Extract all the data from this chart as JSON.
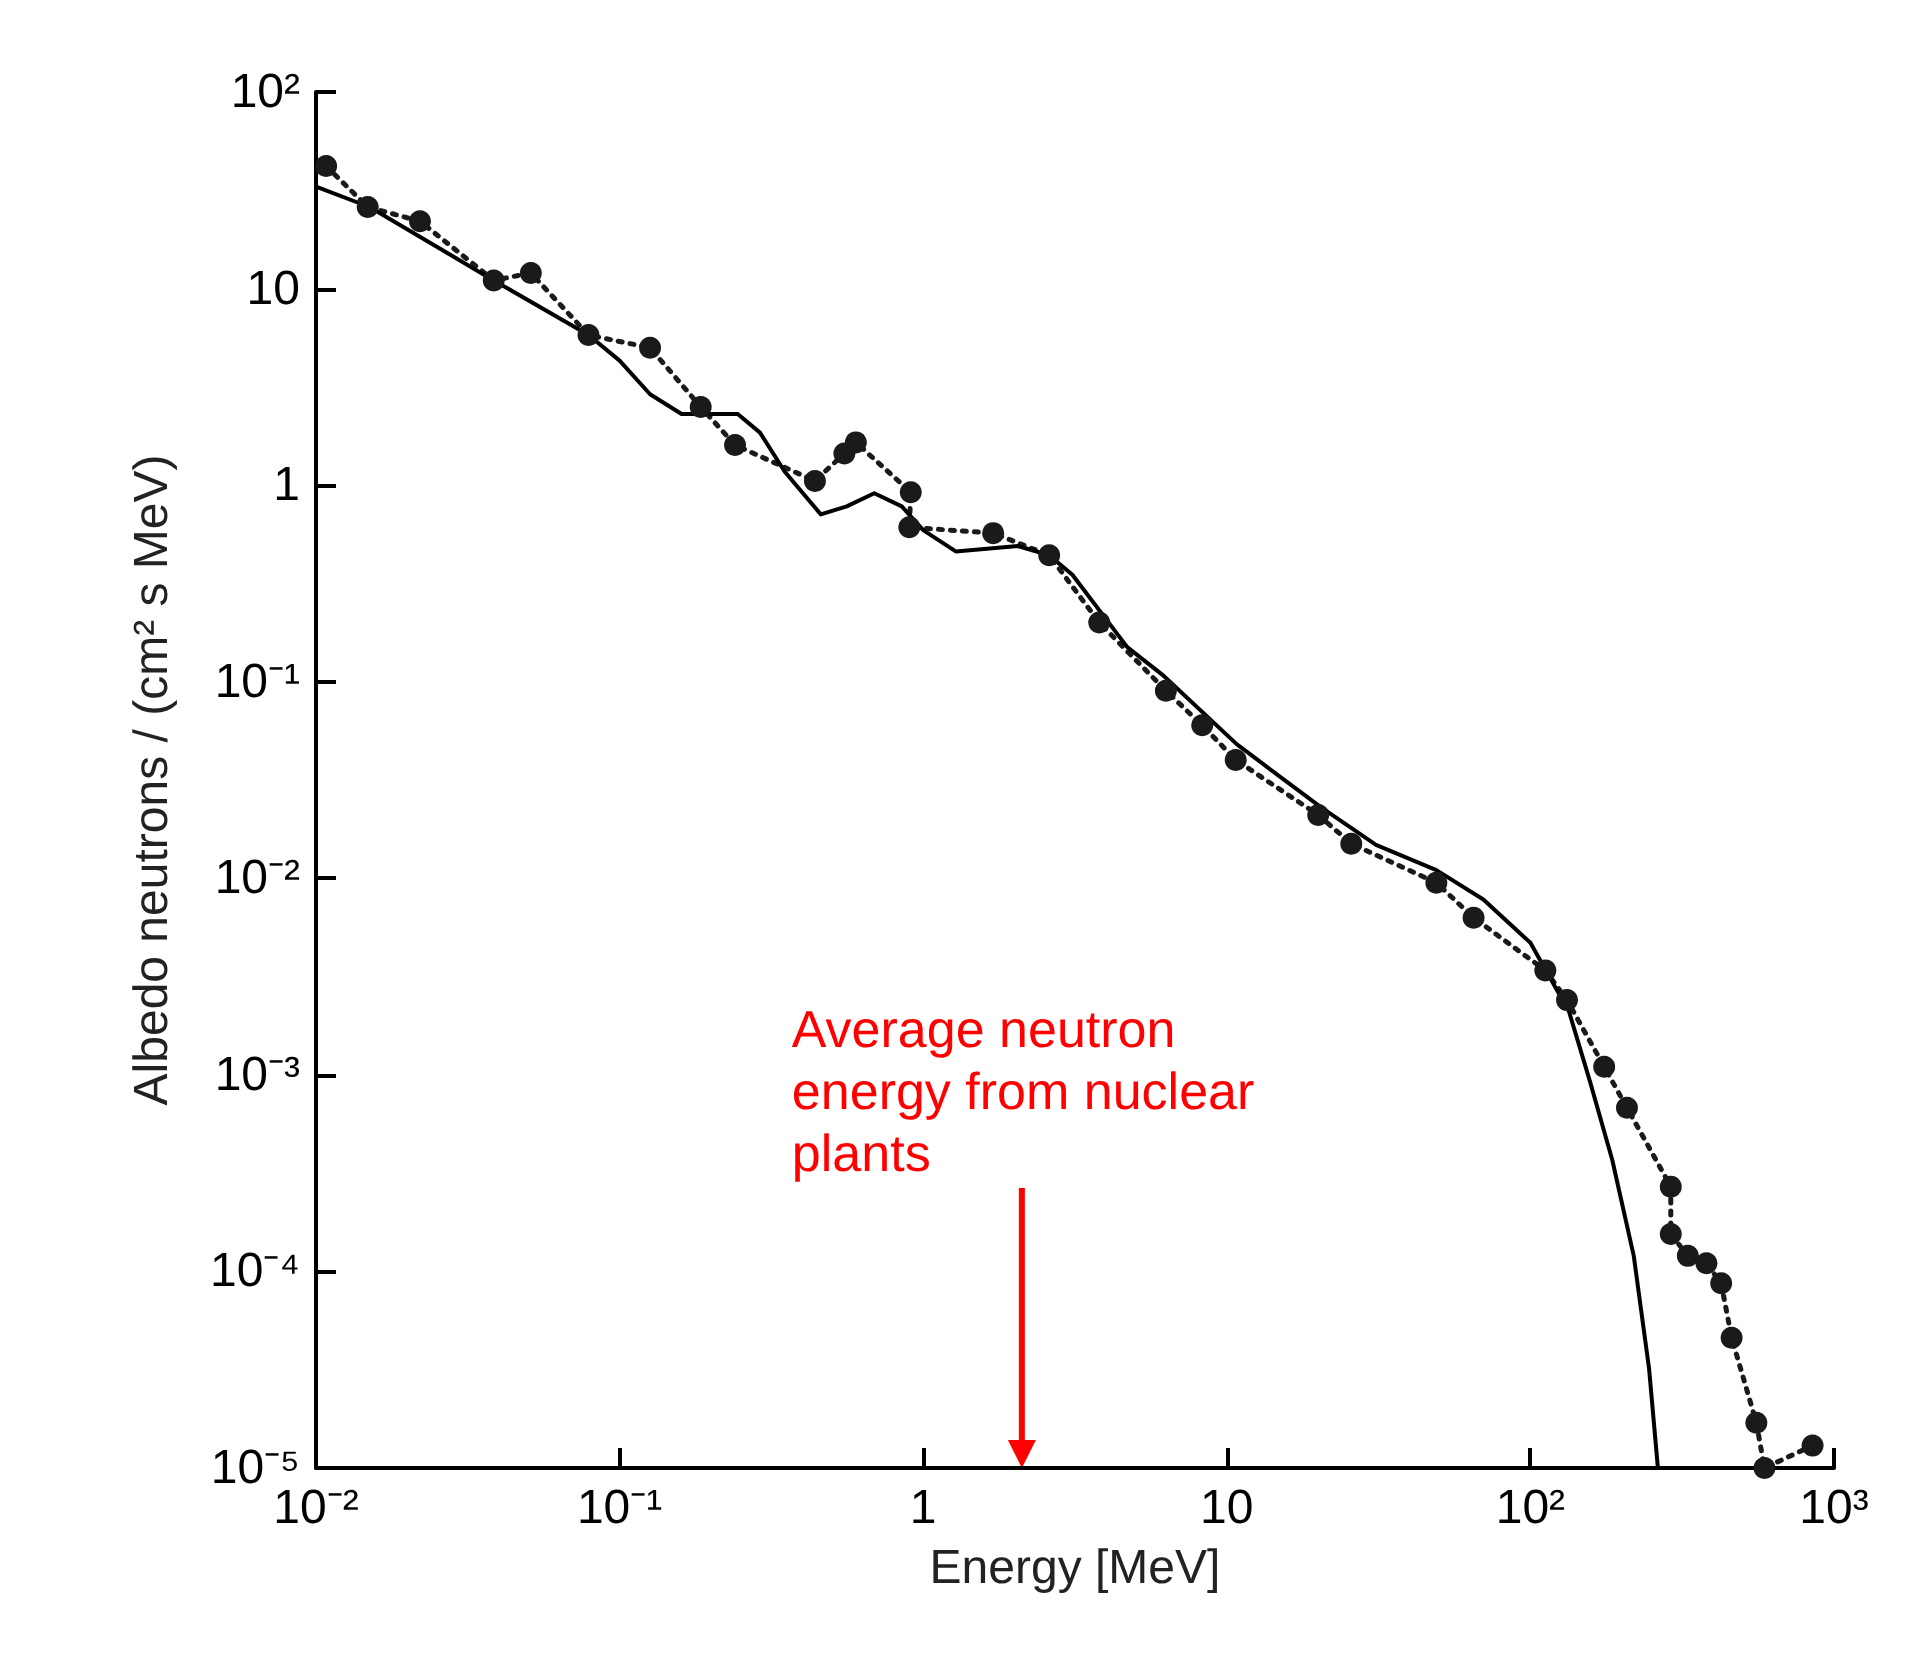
{
  "chart_data": {
    "type": "line",
    "xlabel": "Energy [MeV]",
    "ylabel": "Albedo neutrons / (cm² s MeV)",
    "log": "xy",
    "xlim": [
      0.01,
      1000
    ],
    "ylim": [
      1e-05,
      100
    ],
    "xticks": [
      {
        "value": 0.01,
        "label": "10⁻²"
      },
      {
        "value": 0.1,
        "label": "10⁻¹"
      },
      1,
      10,
      {
        "value": 100,
        "label": "10²"
      },
      {
        "value": 1000,
        "label": "10³"
      }
    ],
    "yticks": [
      {
        "value": 1e-05,
        "label": "10⁻⁵"
      },
      {
        "value": 0.0001,
        "label": "10⁻⁴"
      },
      {
        "value": 0.001,
        "label": "10⁻³"
      },
      {
        "value": 0.01,
        "label": "10⁻²"
      },
      {
        "value": 0.1,
        "label": "10⁻¹"
      },
      1,
      10,
      {
        "value": 100,
        "label": "10²"
      }
    ],
    "grid": false,
    "annotations": [
      "Average neutron energy from nuclear plants"
    ],
    "series": [
      {
        "color": "#1a1a1a",
        "marker": "circle",
        "line_style": "dotted",
        "x": [
          0.0108,
          0.0148,
          0.022,
          0.0385,
          0.051,
          0.079,
          0.126,
          0.185,
          0.24,
          0.44,
          0.55,
          0.6,
          0.91,
          0.9,
          1.7,
          2.6,
          3.8,
          6.3,
          8.3,
          10.7,
          20,
          25.7,
          49,
          65,
          112,
          132,
          175,
          208,
          290,
          290,
          330,
          380,
          425,
          460,
          555,
          590,
          850
        ],
        "values": [
          42,
          26,
          22,
          11,
          12,
          5.8,
          5,
          2.5,
          1.6,
          1.05,
          1.45,
          1.65,
          0.92,
          0.61,
          0.57,
          0.44,
          0.2,
          0.09,
          0.06,
          0.04,
          0.021,
          0.015,
          0.0095,
          0.0063,
          0.0034,
          0.0024,
          0.0011,
          0.00068,
          0.00027,
          0.000155,
          0.00012,
          0.00011,
          8.7e-05,
          4.6e-05,
          1.7e-05,
          1e-05,
          1.3e-05
        ]
      },
      {
        "color": "#000000",
        "marker": "none",
        "line_style": "solid",
        "x": [
          0.01,
          0.015,
          0.0385,
          0.079,
          0.1,
          0.126,
          0.16,
          0.245,
          0.29,
          0.35,
          0.46,
          0.56,
          0.69,
          0.85,
          1,
          1.28,
          2.05,
          2.6,
          3.1,
          4.7,
          6.2,
          10.8,
          20.4,
          31,
          49,
          70,
          100,
          134,
          157,
          186,
          219,
          246,
          263
        ],
        "values": [
          33,
          26,
          11,
          5.8,
          4.3,
          2.9,
          2.3,
          2.3,
          1.85,
          1.17,
          0.71,
          0.78,
          0.91,
          0.78,
          0.59,
          0.46,
          0.49,
          0.44,
          0.35,
          0.15,
          0.107,
          0.048,
          0.023,
          0.0148,
          0.011,
          0.0078,
          0.0047,
          0.0021,
          0.00093,
          0.00037,
          0.00012,
          3.2e-05,
          1e-05
        ]
      }
    ]
  }
}
